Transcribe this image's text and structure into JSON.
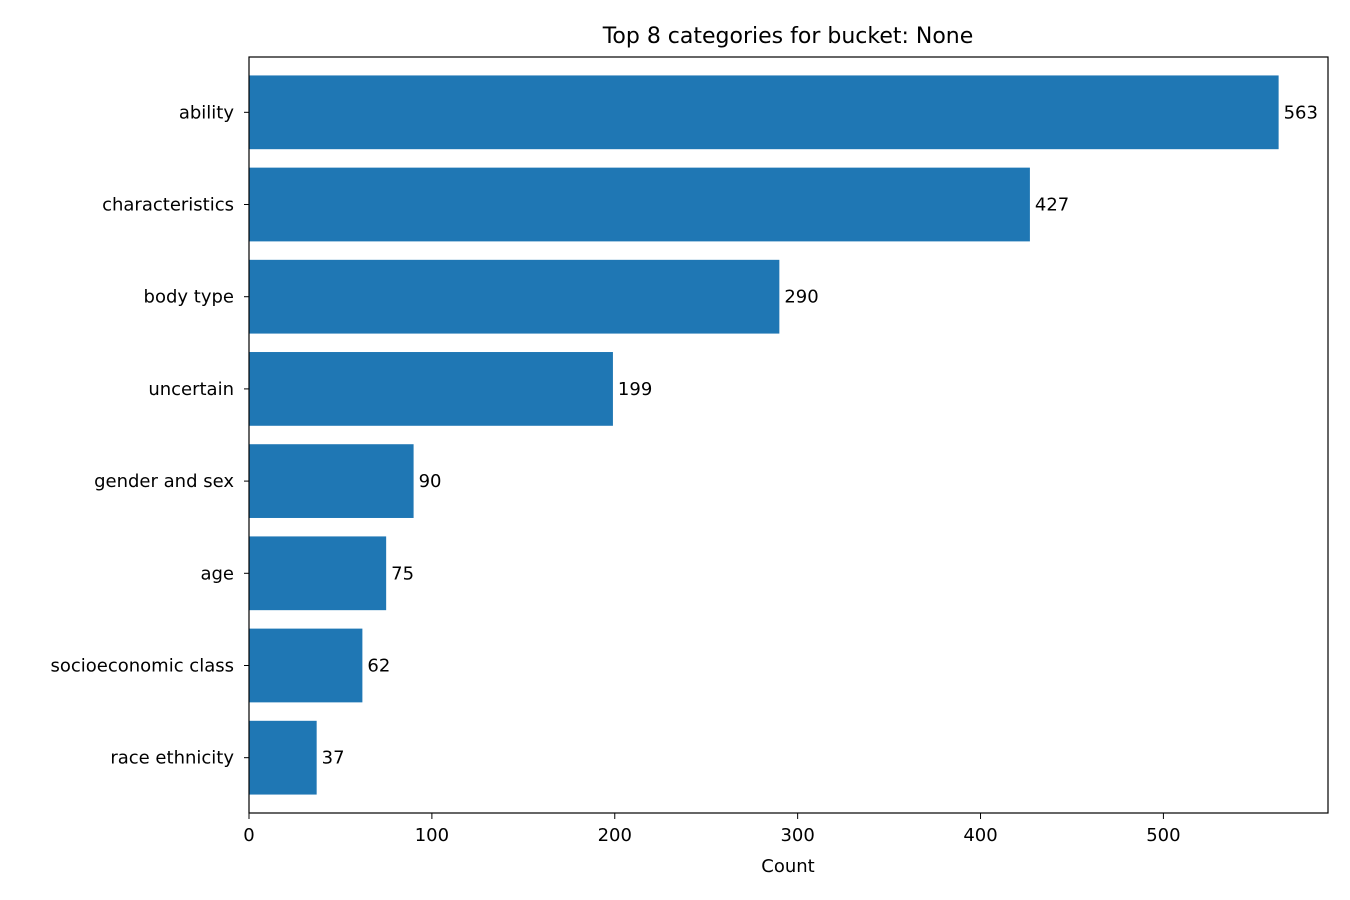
{
  "chart_data": {
    "type": "bar",
    "orientation": "horizontal",
    "title": "Top 8 categories for bucket: None",
    "xlabel": "Count",
    "ylabel": "",
    "xlim": [
      0,
      590
    ],
    "xticks": [
      0,
      100,
      200,
      300,
      400,
      500
    ],
    "categories": [
      "ability",
      "characteristics",
      "body type",
      "uncertain",
      "gender and sex",
      "age",
      "socioeconomic class",
      "race ethnicity"
    ],
    "values": [
      563,
      427,
      290,
      199,
      90,
      75,
      62,
      37
    ],
    "bar_color": "#1f77b4",
    "grid": false,
    "legend": "none"
  }
}
